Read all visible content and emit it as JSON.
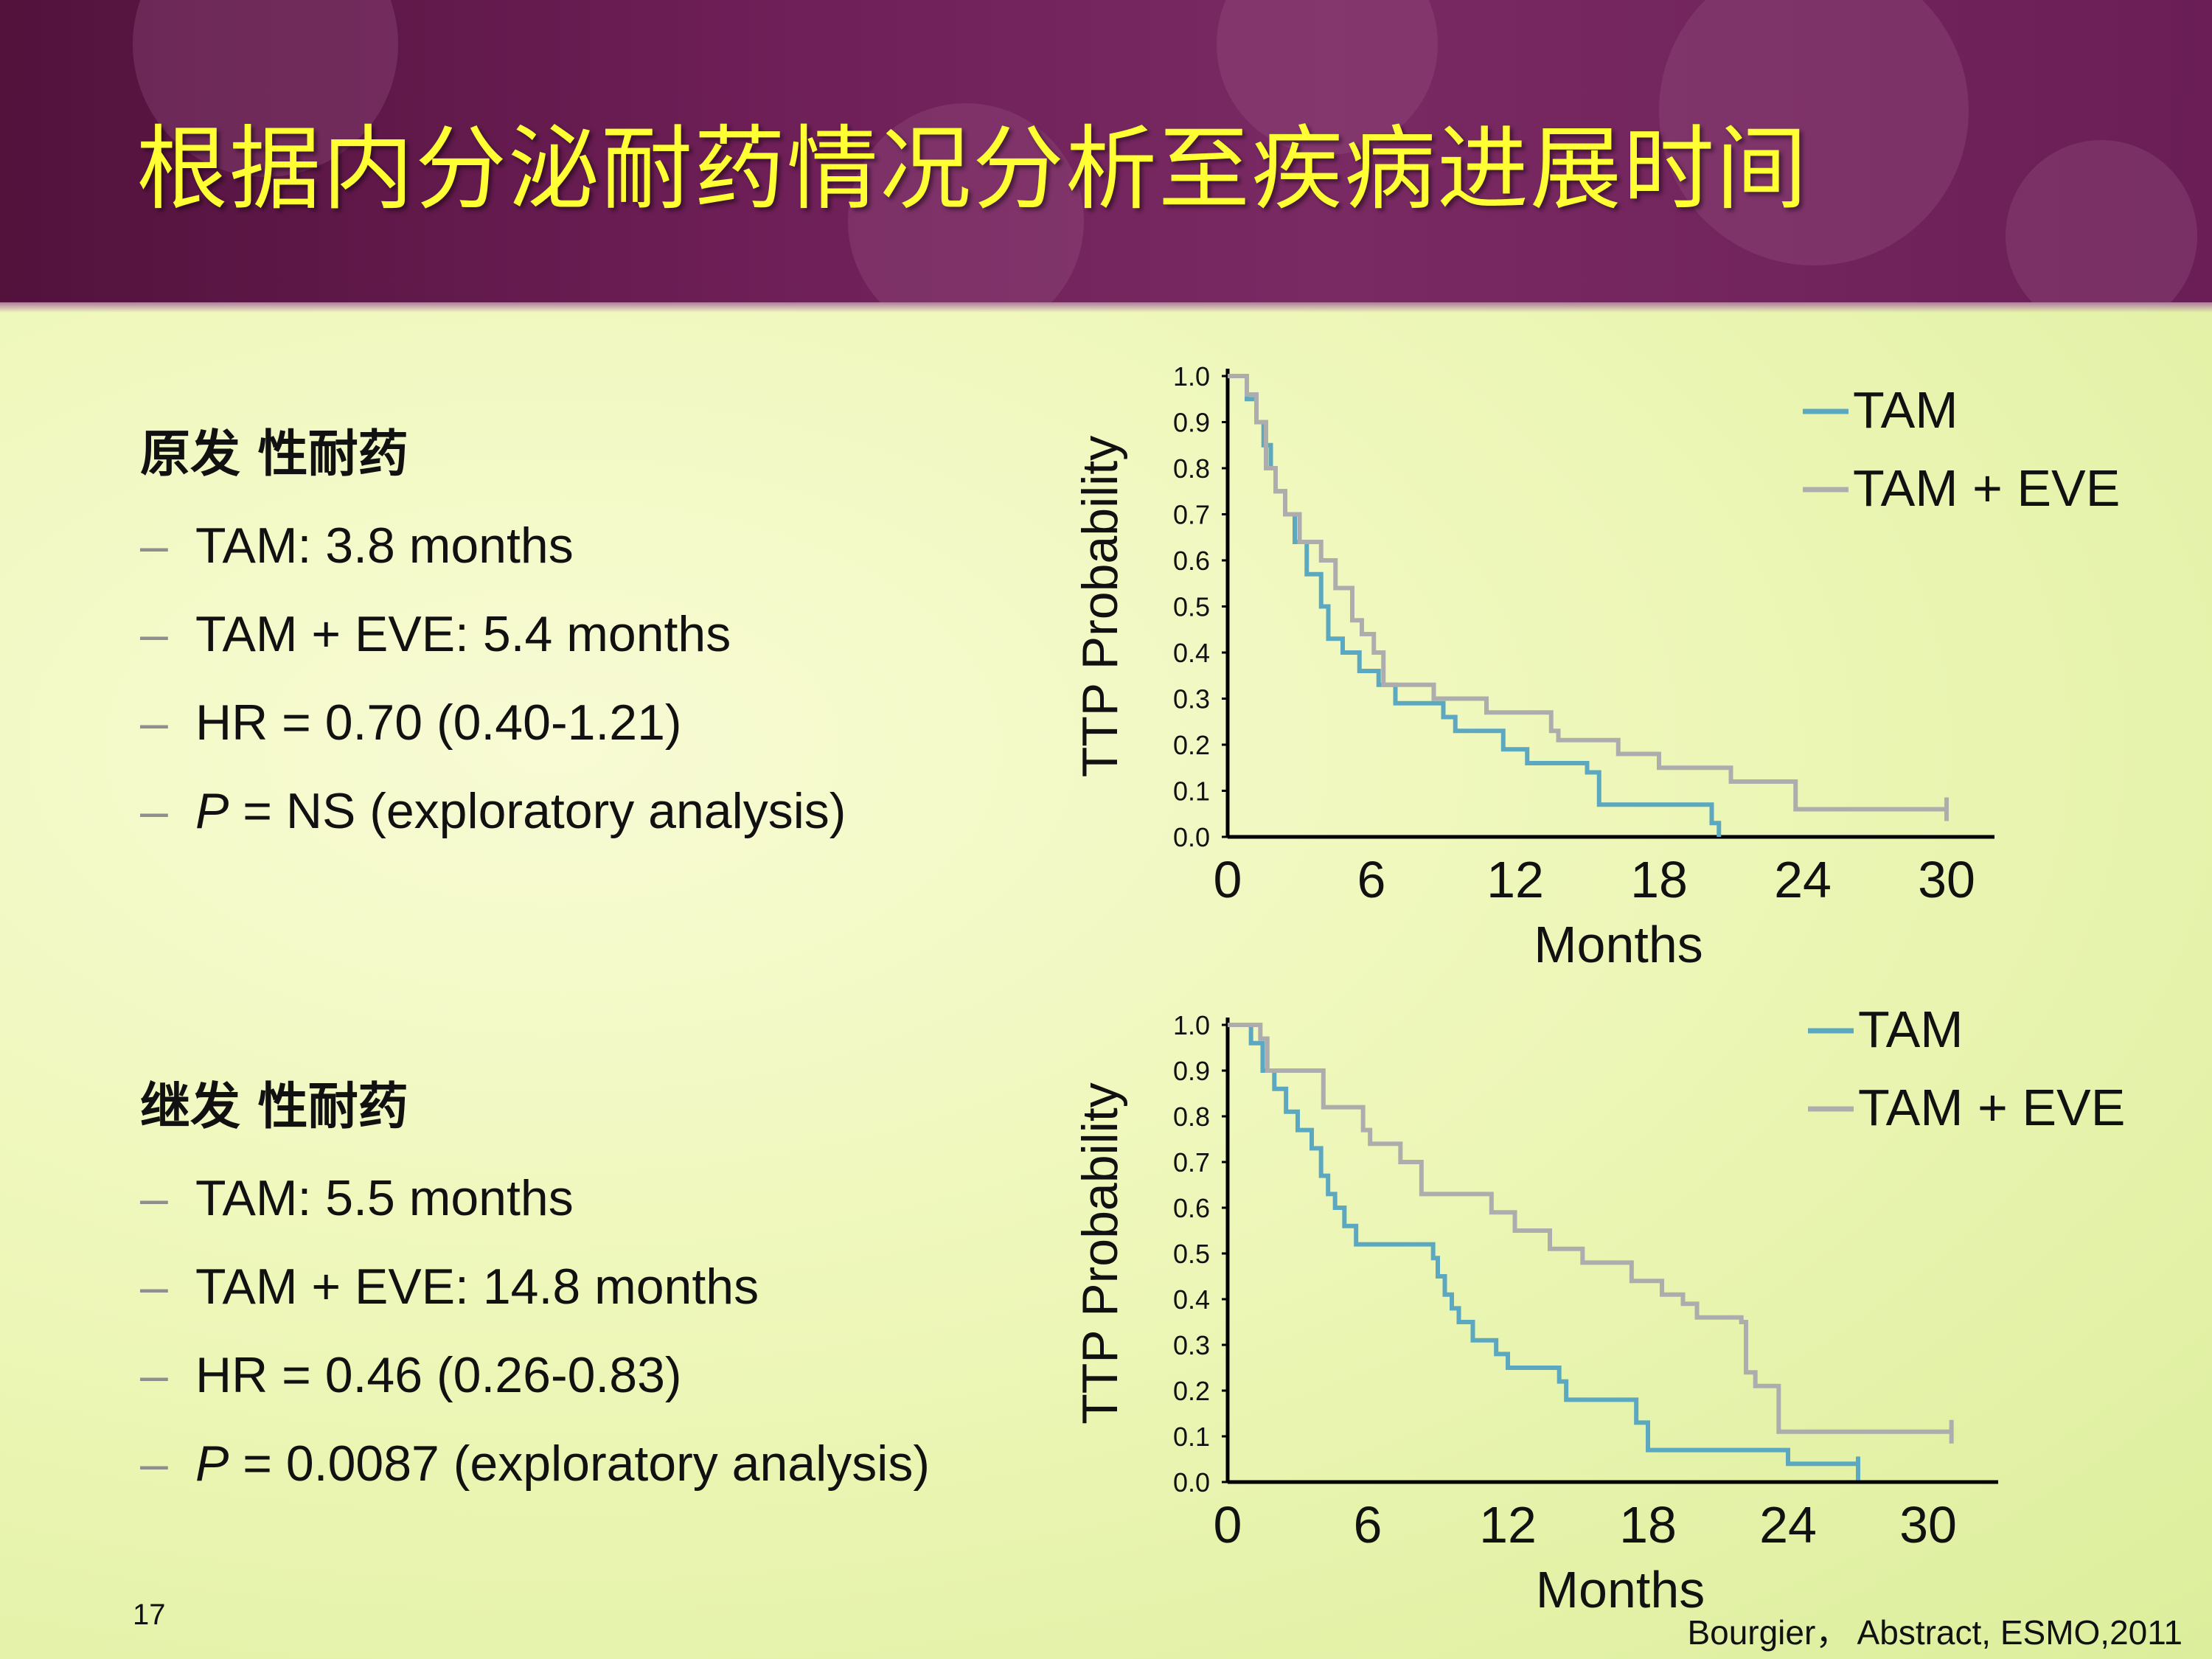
{
  "slide": {
    "title": "根据内分泌耐药情况分析至疾病进展时间",
    "page_number": "17",
    "citation": "Bourgier， Abstract, ESMO,2011"
  },
  "primary": {
    "heading": "原发 性耐药",
    "bullets": [
      {
        "dash": "–",
        "prefix": "",
        "text": "TAM: 3.8 months"
      },
      {
        "dash": "–",
        "prefix": "",
        "text": "TAM + EVE: 5.4 months"
      },
      {
        "dash": "–",
        "prefix": "",
        "text": "HR = 0.70 (0.40-1.21)"
      },
      {
        "dash": "–",
        "prefix": "P",
        "text": " = NS (exploratory analysis)"
      }
    ]
  },
  "secondary": {
    "heading": "继发 性耐药",
    "bullets": [
      {
        "dash": "–",
        "prefix": "",
        "text": "TAM: 5.5 months"
      },
      {
        "dash": "–",
        "prefix": "",
        "text": "TAM + EVE: 14.8 months"
      },
      {
        "dash": "–",
        "prefix": "",
        "text": "HR = 0.46 (0.26-0.83)"
      },
      {
        "dash": "–",
        "prefix": "P",
        "text": " = 0.0087 (exploratory analysis)"
      }
    ]
  },
  "chart_data": [
    {
      "type": "line",
      "step": true,
      "xlabel": "Months",
      "ylabel": "TTP Probability",
      "xlim": [
        0,
        32
      ],
      "ylim": [
        0,
        1
      ],
      "xticks": [
        "0",
        "6",
        "12",
        "18",
        "24",
        "30"
      ],
      "yticks": [
        "0.0",
        "0.1",
        "0.2",
        "0.3",
        "0.4",
        "0.5",
        "0.6",
        "0.7",
        "0.8",
        "0.9",
        "1.0"
      ],
      "legend_position": "top-right",
      "colors": {
        "TAM": "#5ba8c0",
        "TAM + EVE": "#adadad"
      },
      "series": [
        {
          "name": "TAM",
          "x": [
            0,
            0.8,
            1.2,
            1.5,
            1.8,
            2.0,
            2.4,
            2.8,
            3.3,
            3.9,
            4.2,
            4.8,
            5.5,
            6.3,
            7.0,
            9.0,
            9.5,
            11.5,
            12.5,
            15.0,
            15.5,
            17.5,
            19.0,
            20.2,
            20.5
          ],
          "y": [
            1.0,
            0.95,
            0.9,
            0.85,
            0.8,
            0.75,
            0.7,
            0.64,
            0.57,
            0.5,
            0.43,
            0.4,
            0.36,
            0.33,
            0.29,
            0.26,
            0.23,
            0.19,
            0.16,
            0.14,
            0.07,
            0.07,
            0.07,
            0.03,
            0.0
          ]
        },
        {
          "name": "TAM + EVE",
          "x": [
            0,
            0.8,
            1.2,
            1.6,
            2.0,
            2.4,
            3.0,
            3.9,
            4.5,
            5.2,
            5.6,
            6.1,
            6.5,
            8.6,
            10.8,
            13.5,
            13.8,
            16.3,
            18.0,
            21.0,
            23.7,
            30.0
          ],
          "y": [
            1.0,
            0.96,
            0.9,
            0.8,
            0.75,
            0.7,
            0.64,
            0.6,
            0.54,
            0.47,
            0.44,
            0.4,
            0.33,
            0.3,
            0.27,
            0.23,
            0.21,
            0.18,
            0.15,
            0.12,
            0.06,
            0.06
          ]
        }
      ]
    },
    {
      "type": "line",
      "step": true,
      "xlabel": "Months",
      "ylabel": "TTP Probability",
      "xlim": [
        0,
        33
      ],
      "ylim": [
        0,
        1
      ],
      "xticks": [
        "0",
        "6",
        "12",
        "18",
        "24",
        "30"
      ],
      "yticks": [
        "0.0",
        "0.1",
        "0.2",
        "0.3",
        "0.4",
        "0.5",
        "0.6",
        "0.7",
        "0.8",
        "0.9",
        "1.0"
      ],
      "legend_position": "top-right",
      "colors": {
        "TAM": "#5ba8c0",
        "TAM + EVE": "#adadad"
      },
      "series": [
        {
          "name": "TAM",
          "x": [
            0,
            1.0,
            1.5,
            2.0,
            2.5,
            3.0,
            3.6,
            4.0,
            4.3,
            4.6,
            5.0,
            5.5,
            8.8,
            9.0,
            9.3,
            9.6,
            9.9,
            10.5,
            11.5,
            12.0,
            14.2,
            14.5,
            17.5,
            18.0,
            24.0,
            27.0
          ],
          "y": [
            1.0,
            0.96,
            0.9,
            0.86,
            0.81,
            0.77,
            0.73,
            0.67,
            0.63,
            0.6,
            0.56,
            0.52,
            0.49,
            0.45,
            0.41,
            0.38,
            0.35,
            0.31,
            0.28,
            0.25,
            0.22,
            0.18,
            0.13,
            0.07,
            0.04,
            0.03
          ]
        },
        {
          "name": "TAM + EVE",
          "x": [
            0,
            1.4,
            1.7,
            4.1,
            5.8,
            6.1,
            7.4,
            8.3,
            11.3,
            12.3,
            13.8,
            15.2,
            17.3,
            18.6,
            19.5,
            20.1,
            22.0,
            22.2,
            22.6,
            23.6,
            31.0
          ],
          "y": [
            1.0,
            0.97,
            0.9,
            0.82,
            0.77,
            0.74,
            0.7,
            0.63,
            0.59,
            0.55,
            0.51,
            0.48,
            0.44,
            0.41,
            0.39,
            0.36,
            0.35,
            0.24,
            0.21,
            0.11,
            0.11
          ]
        }
      ]
    }
  ]
}
